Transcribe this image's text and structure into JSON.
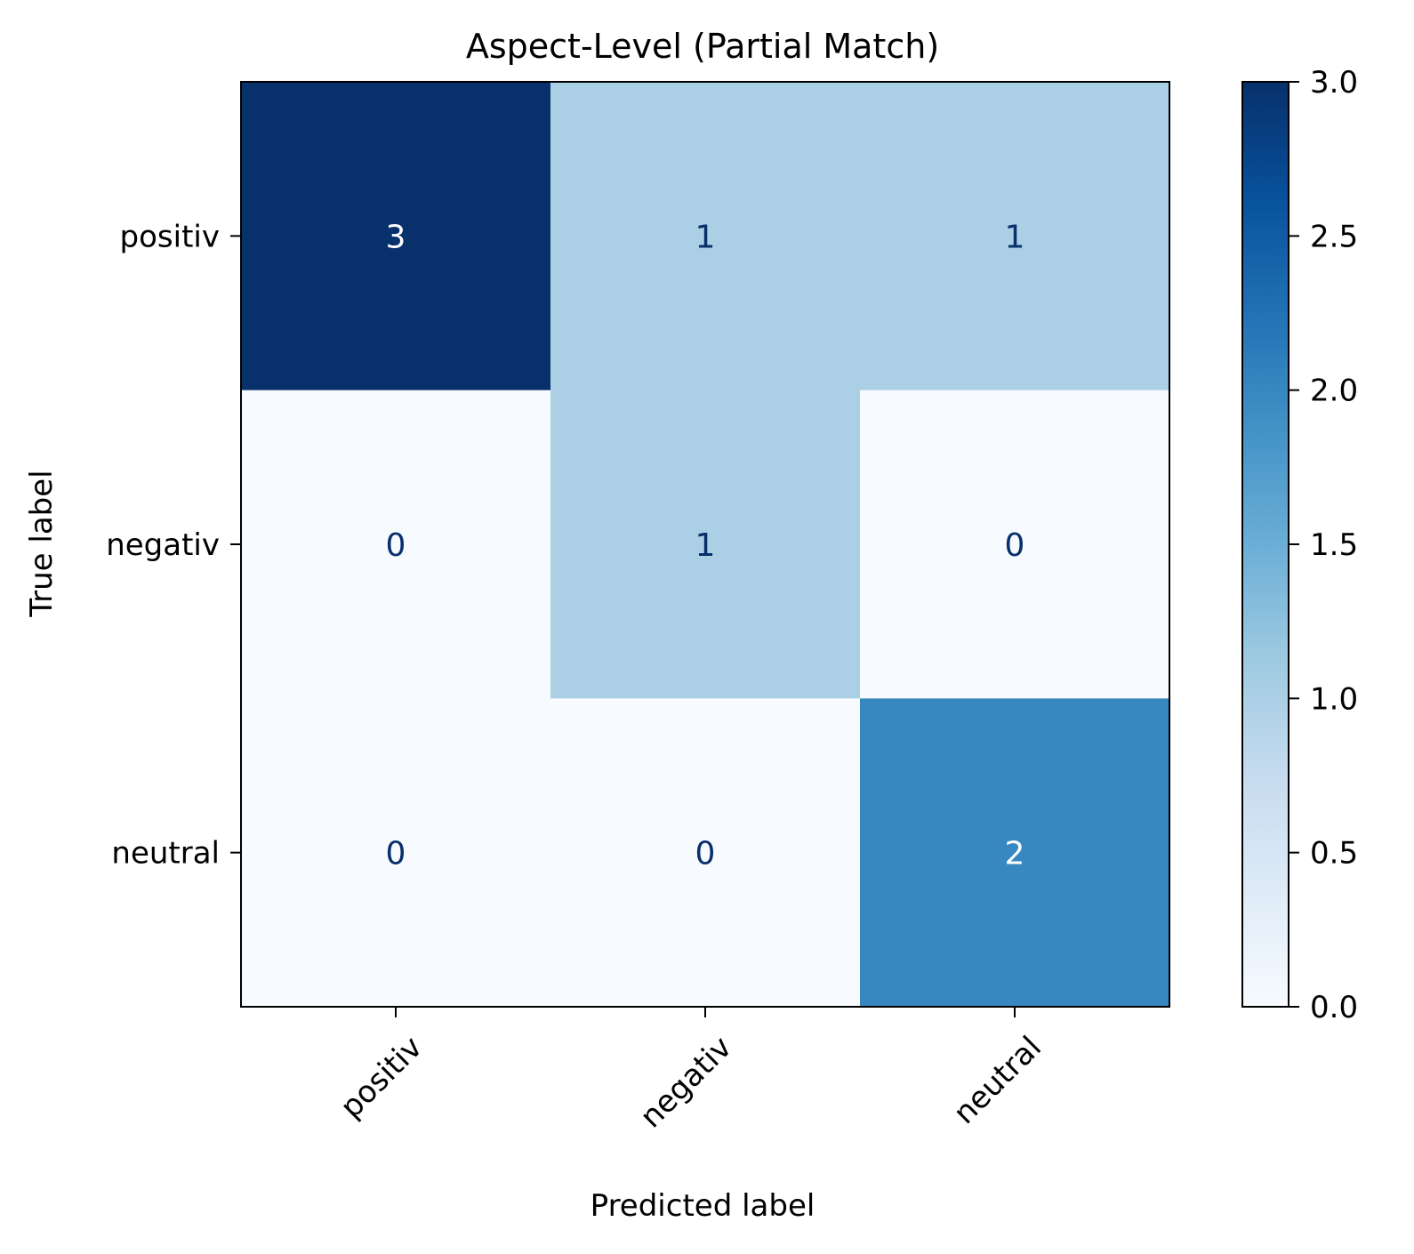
{
  "chart_data": {
    "type": "heatmap",
    "title": "Aspect-Level (Partial Match)",
    "xlabel": "Predicted label",
    "ylabel": "True label",
    "x_categories": [
      "positiv",
      "negativ",
      "neutral"
    ],
    "y_categories": [
      "positiv",
      "negativ",
      "neutral"
    ],
    "values": [
      [
        3,
        1,
        1
      ],
      [
        0,
        1,
        0
      ],
      [
        0,
        0,
        2
      ]
    ],
    "colormap": "Blues",
    "colorbar": {
      "range": [
        0,
        3
      ],
      "ticks": [
        "0.0",
        "0.5",
        "1.0",
        "1.5",
        "2.0",
        "2.5",
        "3.0"
      ]
    },
    "colors": {
      "low": "#f7fbff",
      "high": "#08306b",
      "text_dark": "#08306b",
      "text_light": "#ffffff"
    }
  }
}
